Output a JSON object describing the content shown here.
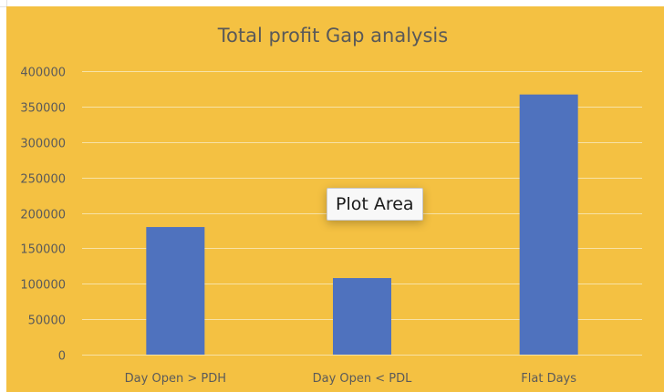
{
  "colors": {
    "chart_background": "#F4C142",
    "bar": "#4F72BE",
    "gridline": "#F7E2A6",
    "text": "#5A5A5A",
    "title": "#595959",
    "sheet_grid": "#E2E2E2"
  },
  "tooltip": {
    "text": "Plot Area"
  },
  "chart_data": {
    "type": "bar",
    "title": "Total profit Gap analysis",
    "categories": [
      "Day Open > PDH",
      "Day Open < PDL",
      "Flat Days"
    ],
    "values": [
      180000,
      108000,
      367000
    ],
    "ylim": [
      0,
      400000
    ],
    "yticks": [
      0,
      50000,
      100000,
      150000,
      200000,
      250000,
      300000,
      350000,
      400000
    ],
    "grid": true,
    "legend": "none"
  }
}
